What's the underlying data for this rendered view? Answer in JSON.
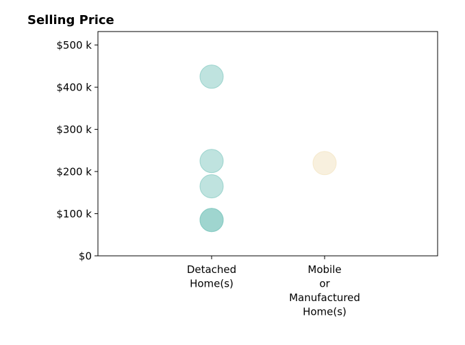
{
  "chart_data": {
    "type": "scatter",
    "title": "Selling Price",
    "xlabel": "",
    "ylabel": "",
    "categories": [
      [
        "Detached",
        "Home(s)"
      ],
      [
        "Mobile",
        "or",
        "Manufactured",
        "Home(s)"
      ]
    ],
    "y_ticks": [
      "$0",
      "$100 k",
      "$200 k",
      "$300 k",
      "$400 k",
      "$500 k"
    ],
    "y_tick_values": [
      0,
      100000,
      200000,
      300000,
      400000,
      500000
    ],
    "ylim": [
      0,
      532000
    ],
    "grid": false,
    "legend": "none",
    "series": [
      {
        "category": 0,
        "color": "#7fc8bf",
        "values": [
          425000,
          225000,
          165000,
          85000,
          85000
        ]
      },
      {
        "category": 1,
        "color": "#f2e2bd",
        "values": [
          220000
        ]
      }
    ]
  }
}
